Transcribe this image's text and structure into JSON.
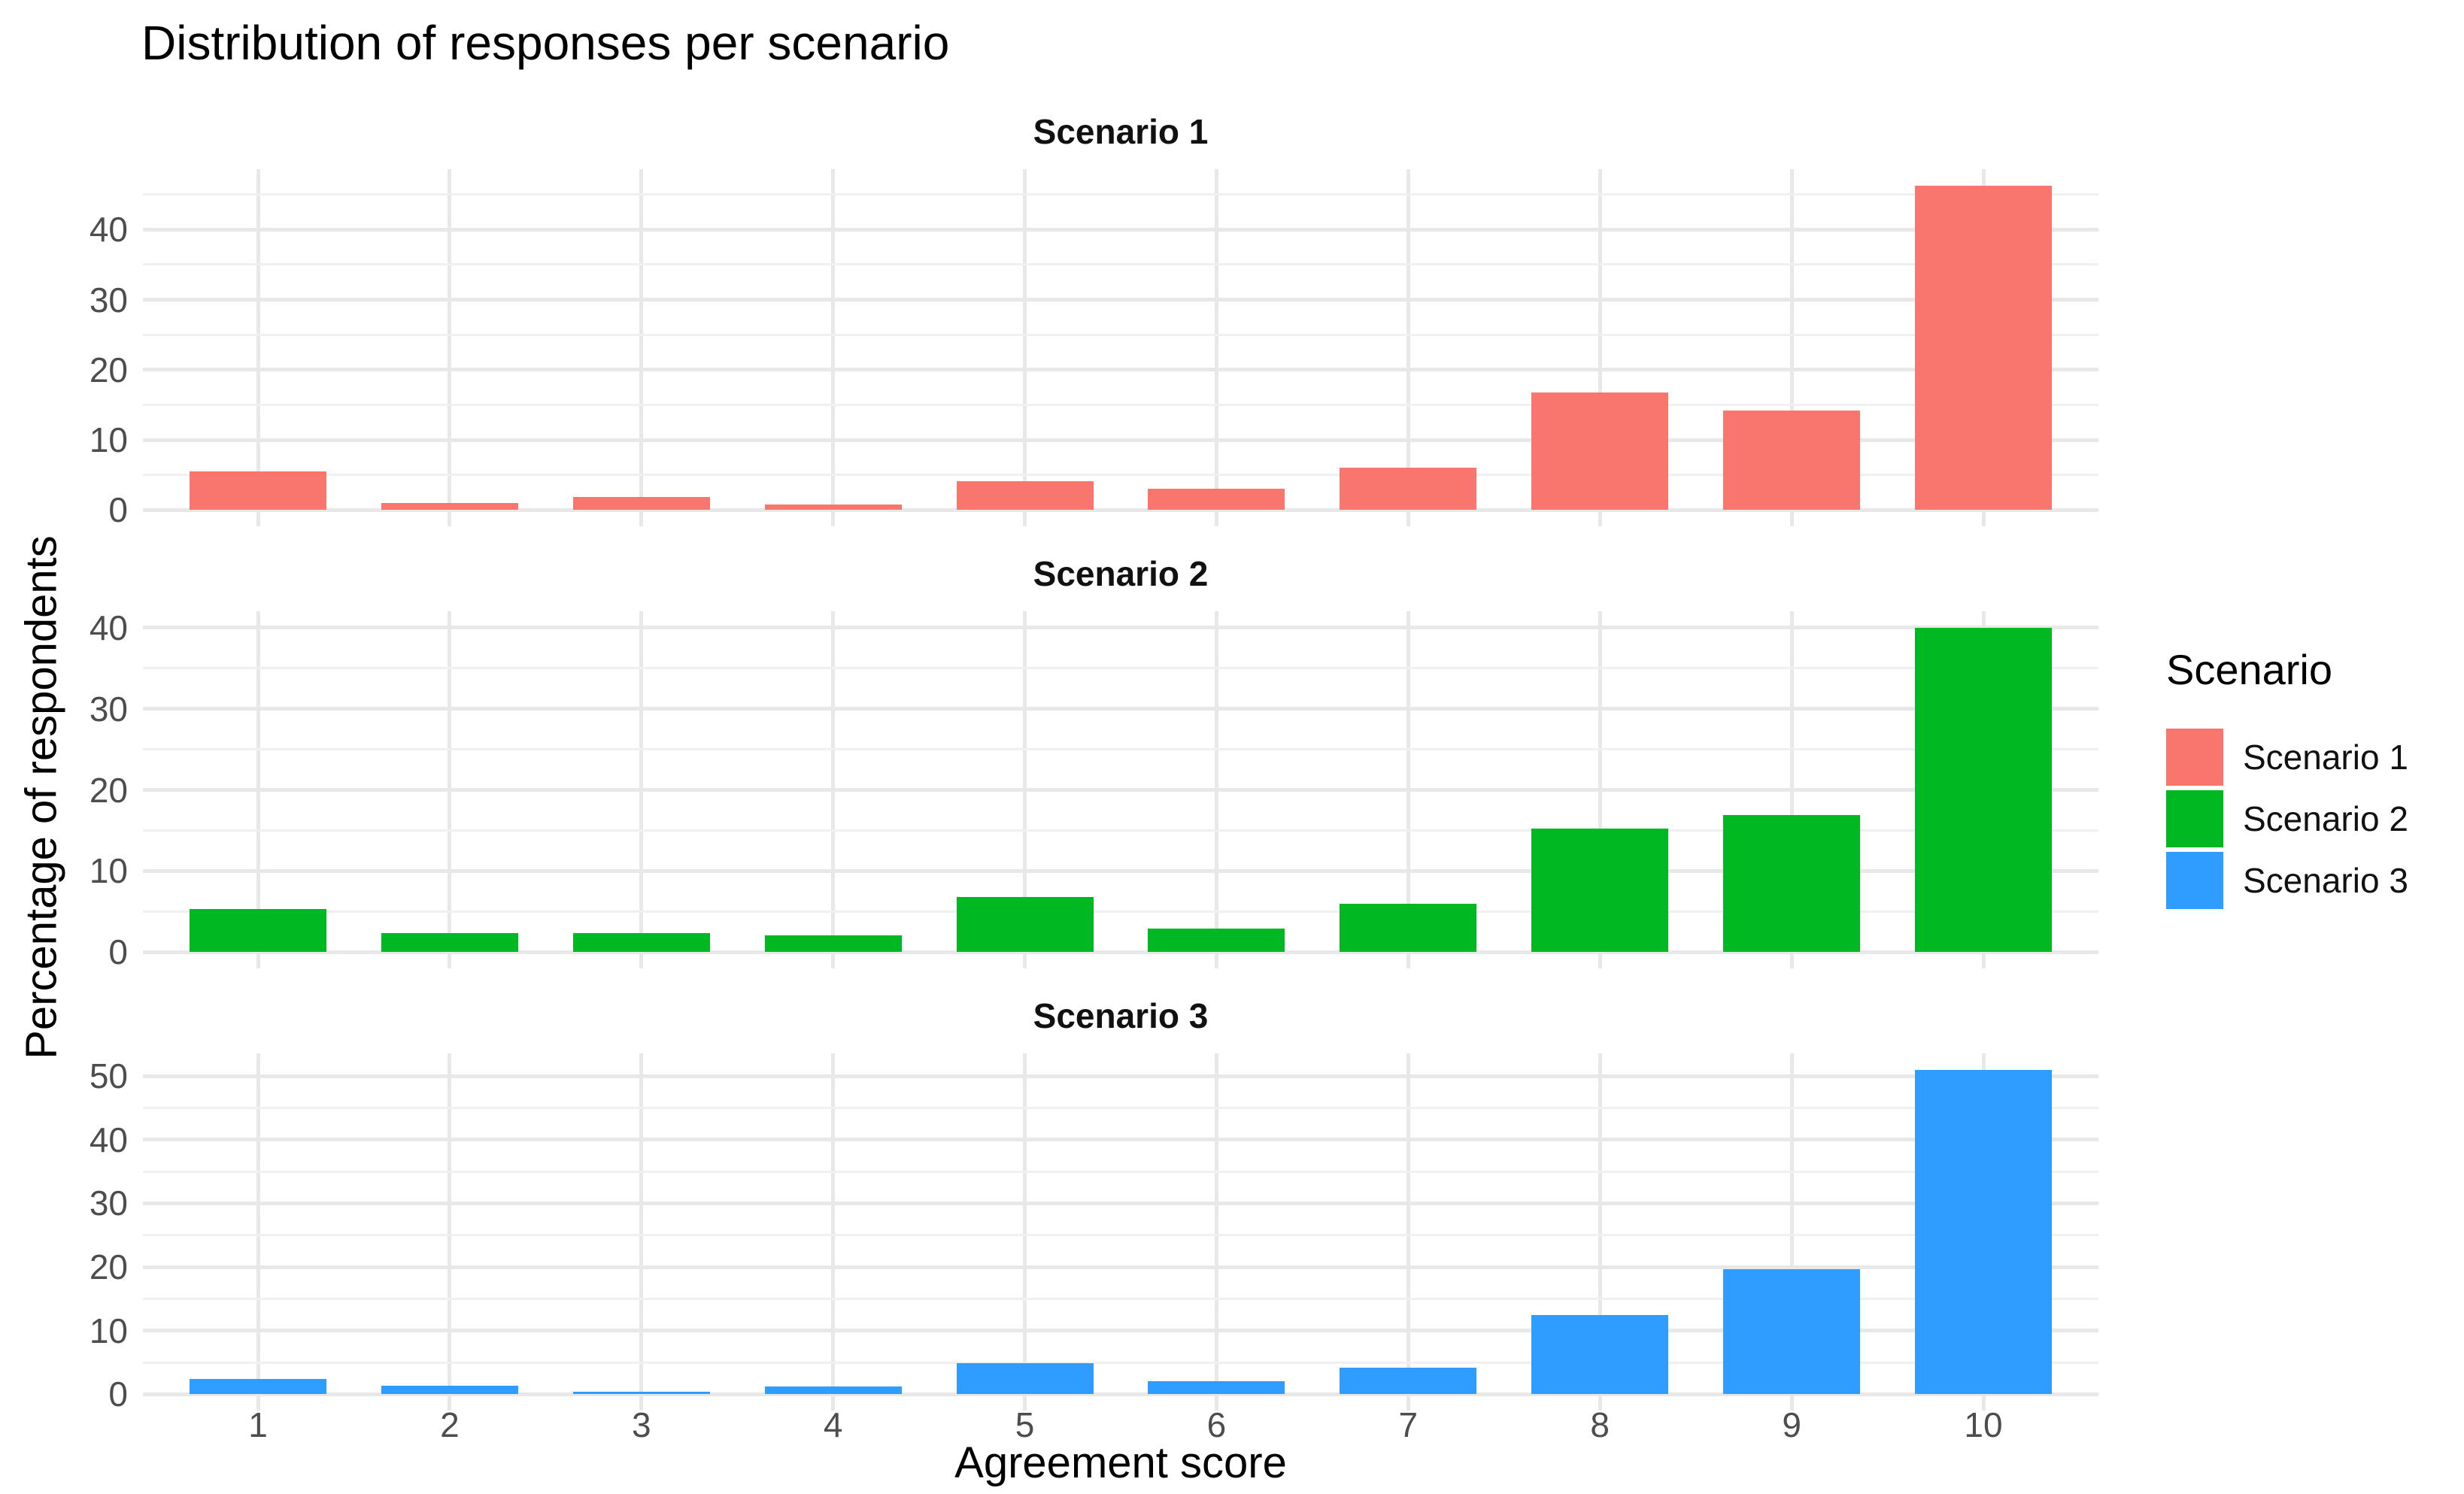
{
  "title": "Distribution of responses per scenario",
  "y_axis_title": "Percentage of respondents",
  "x_axis_title": "Agreement score",
  "legend": {
    "title": "Scenario",
    "position": "right",
    "entries": [
      {
        "label": "Scenario 1",
        "color": "#F8766D"
      },
      {
        "label": "Scenario 2",
        "color": "#00B822"
      },
      {
        "label": "Scenario 3",
        "color": "#2E9DFF"
      }
    ]
  },
  "chart_data": {
    "type": "bar",
    "title": "Distribution of responses per scenario",
    "xlabel": "Agreement score",
    "ylabel": "Percentage of respondents",
    "categories": [
      "1",
      "2",
      "3",
      "4",
      "5",
      "6",
      "7",
      "8",
      "9",
      "10"
    ],
    "grid": true,
    "legend_position": "right",
    "facets": [
      {
        "title": "Scenario 1",
        "color": "#F8766D",
        "values": [
          5.5,
          1.0,
          1.9,
          0.8,
          4.1,
          3.0,
          6.0,
          16.8,
          14.2,
          46.3
        ],
        "y_tick_labels": [
          0,
          10,
          20,
          30,
          40
        ],
        "ylim": [
          -2.3,
          48.6
        ]
      },
      {
        "title": "Scenario 2",
        "color": "#00B822",
        "values": [
          5.3,
          2.4,
          2.4,
          2.1,
          6.8,
          2.9,
          6.0,
          15.2,
          16.9,
          40.0
        ],
        "y_tick_labels": [
          0,
          10,
          20,
          30,
          40
        ],
        "ylim": [
          -2.0,
          42.0
        ]
      },
      {
        "title": "Scenario 3",
        "color": "#2E9DFF",
        "values": [
          2.4,
          1.4,
          0.4,
          1.2,
          4.9,
          2.0,
          4.2,
          12.5,
          19.6,
          51.0
        ],
        "y_tick_labels": [
          0,
          10,
          20,
          30,
          40,
          50
        ],
        "ylim": [
          -2.6,
          53.6
        ]
      }
    ]
  }
}
